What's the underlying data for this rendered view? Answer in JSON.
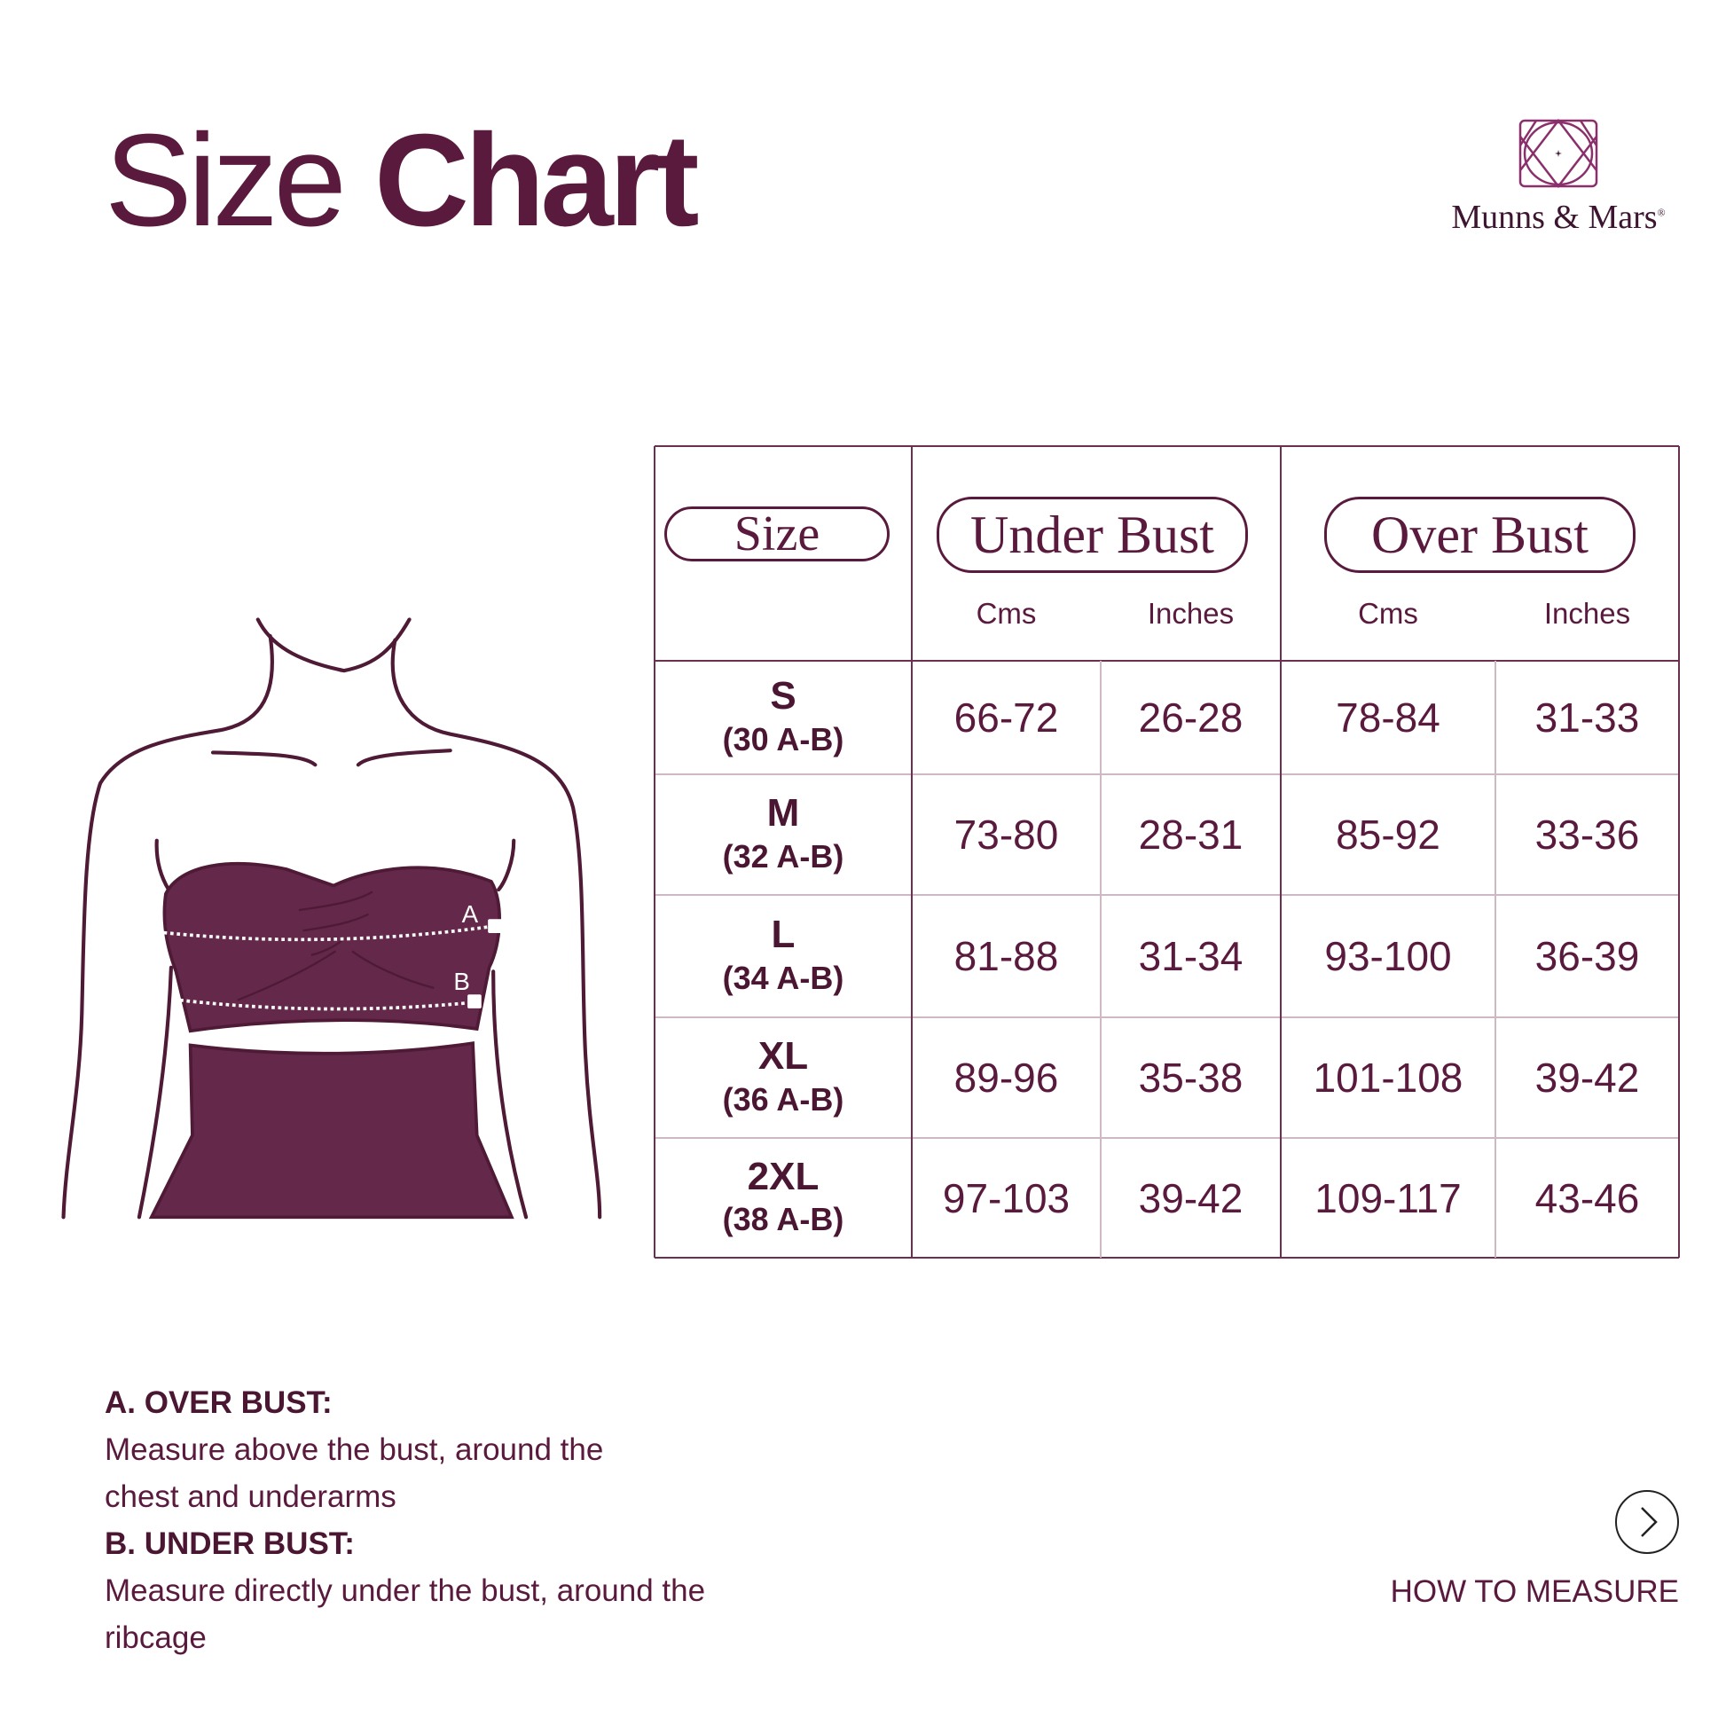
{
  "header": {
    "title_regular": "Size",
    "title_bold": "Chart"
  },
  "brand": {
    "name": "Munns & Mars",
    "registered": "®",
    "logo_icon": "geometric-square-circle-logo"
  },
  "figure": {
    "label_a": "A",
    "label_b": "B"
  },
  "colors": {
    "primary": "#5a1a3d",
    "garment": "#64284a",
    "outline": "#4e1a35"
  },
  "table": {
    "size_header": "Size",
    "groups": [
      {
        "label": "Under Bust",
        "units": [
          "Cms",
          "Inches"
        ]
      },
      {
        "label": "Over Bust",
        "units": [
          "Cms",
          "Inches"
        ]
      }
    ],
    "rows": [
      {
        "size": "S",
        "band": "(30 A-B)",
        "values": [
          "66-72",
          "26-28",
          "78-84",
          "31-33"
        ]
      },
      {
        "size": "M",
        "band": "(32 A-B)",
        "values": [
          "73-80",
          "28-31",
          "85-92",
          "33-36"
        ]
      },
      {
        "size": "L",
        "band": "(34 A-B)",
        "values": [
          "81-88",
          "31-34",
          "93-100",
          "36-39"
        ]
      },
      {
        "size": "XL",
        "band": "(36 A-B)",
        "values": [
          "89-96",
          "35-38",
          "101-108",
          "39-42"
        ]
      },
      {
        "size": "2XL",
        "band": "(38 A-B)",
        "values": [
          "97-103",
          "39-42",
          "109-117",
          "43-46"
        ]
      }
    ]
  },
  "notes": {
    "a_title": "A. OVER BUST:",
    "a_text": "Measure above the bust, around the chest and underarms",
    "b_title": "B. UNDER BUST:",
    "b_text": "Measure directly under the bust, around the ribcage"
  },
  "how_to_measure": {
    "label": "HOW TO MEASURE",
    "icon": "chevron-right-circle-icon"
  }
}
